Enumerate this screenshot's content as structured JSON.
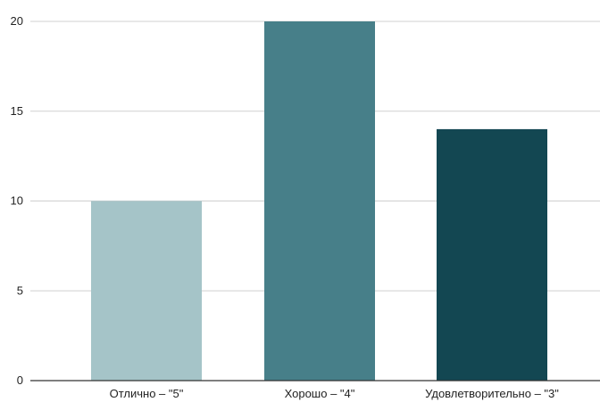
{
  "chart_data": {
    "type": "bar",
    "categories": [
      "Отлично – \"5\"",
      "Хорошо – \"4\"",
      "Удовлетворительно – \"3\""
    ],
    "values": [
      10,
      20,
      14
    ],
    "colors": [
      "#a5c4c8",
      "#477f89",
      "#134752"
    ],
    "ylim": [
      0,
      20
    ],
    "yticks": [
      0,
      5,
      10,
      15,
      20
    ],
    "grid": true,
    "legend": "none"
  }
}
